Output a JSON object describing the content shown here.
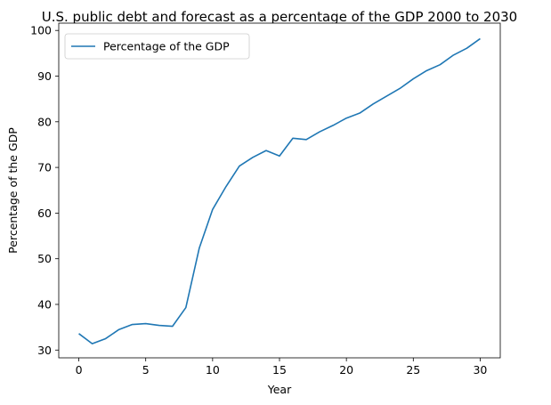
{
  "chart_data": {
    "type": "line",
    "title": "U.S. public debt and forecast as a percentage of the GDP 2000 to 2030",
    "xlabel": "Year",
    "ylabel": "Percentage of the GDP",
    "xlim": [
      -1.5,
      31.5
    ],
    "ylim": [
      28.3,
      101.6
    ],
    "xticks": [
      0,
      5,
      10,
      15,
      20,
      25,
      30
    ],
    "yticks": [
      30,
      40,
      50,
      60,
      70,
      80,
      90,
      100
    ],
    "grid": false,
    "legend_position": "top-left",
    "x": [
      0,
      1,
      2,
      3,
      4,
      5,
      6,
      7,
      8,
      9,
      10,
      11,
      12,
      13,
      14,
      15,
      16,
      17,
      18,
      19,
      20,
      21,
      22,
      23,
      24,
      25,
      26,
      27,
      28,
      29,
      30
    ],
    "series": [
      {
        "name": "Percentage of the GDP",
        "color": "#1f77b4",
        "values": [
          33.6,
          31.4,
          32.5,
          34.5,
          35.6,
          35.8,
          35.4,
          35.2,
          39.3,
          52.3,
          60.8,
          65.8,
          70.3,
          72.2,
          73.7,
          72.5,
          76.4,
          76.1,
          77.8,
          79.2,
          80.8,
          81.9,
          83.9,
          85.6,
          87.3,
          89.4,
          91.2,
          92.5,
          94.6,
          96.1,
          98.2
        ]
      }
    ]
  }
}
